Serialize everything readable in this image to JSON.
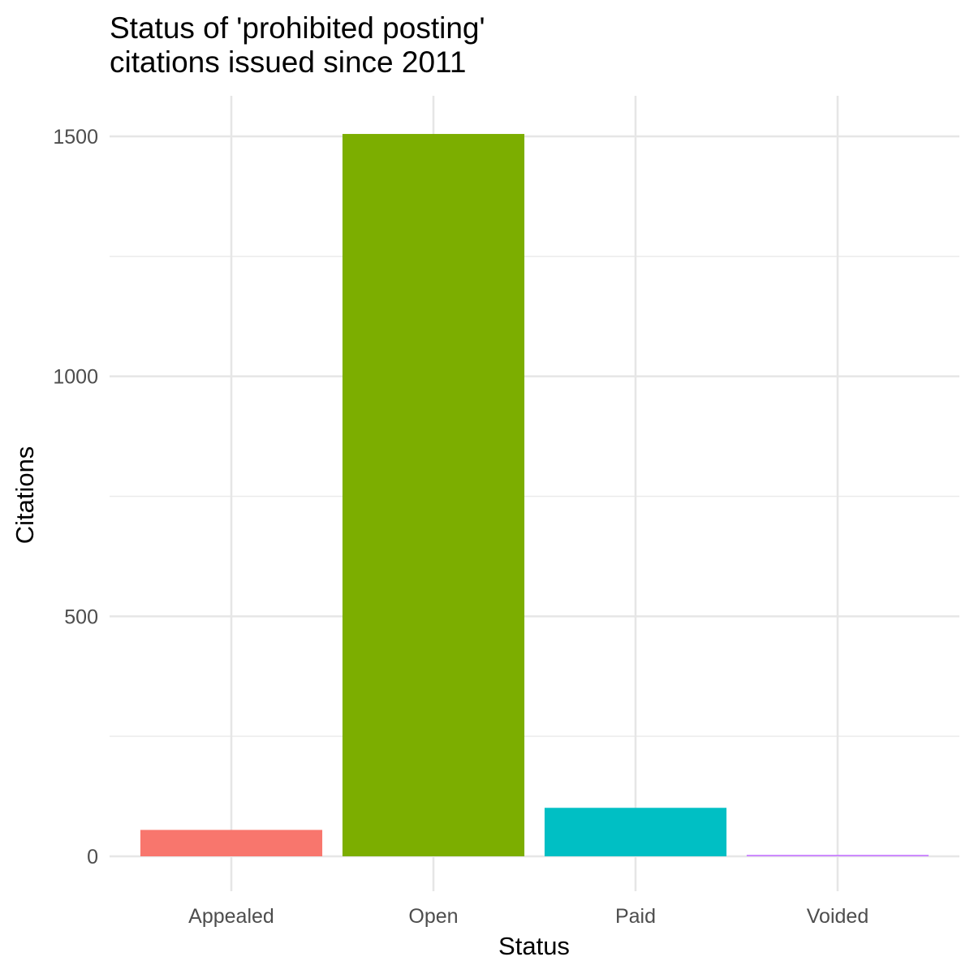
{
  "chart_data": {
    "type": "bar",
    "title_lines": [
      "Status of 'prohibited posting'",
      "citations issued since 2011"
    ],
    "xlabel": "Status",
    "ylabel": "Citations",
    "categories": [
      "Appealed",
      "Open",
      "Paid",
      "Voided"
    ],
    "values": [
      55,
      1505,
      101,
      3
    ],
    "colors": [
      "#F8766D",
      "#7CAE00",
      "#00BFC4",
      "#C77CFF"
    ],
    "ylim": [
      0,
      1575
    ],
    "y_ticks": [
      0,
      500,
      1000,
      1500
    ],
    "y_tick_labels": [
      "0",
      "500",
      "1000",
      "1500"
    ],
    "grid": true,
    "legend": false
  }
}
